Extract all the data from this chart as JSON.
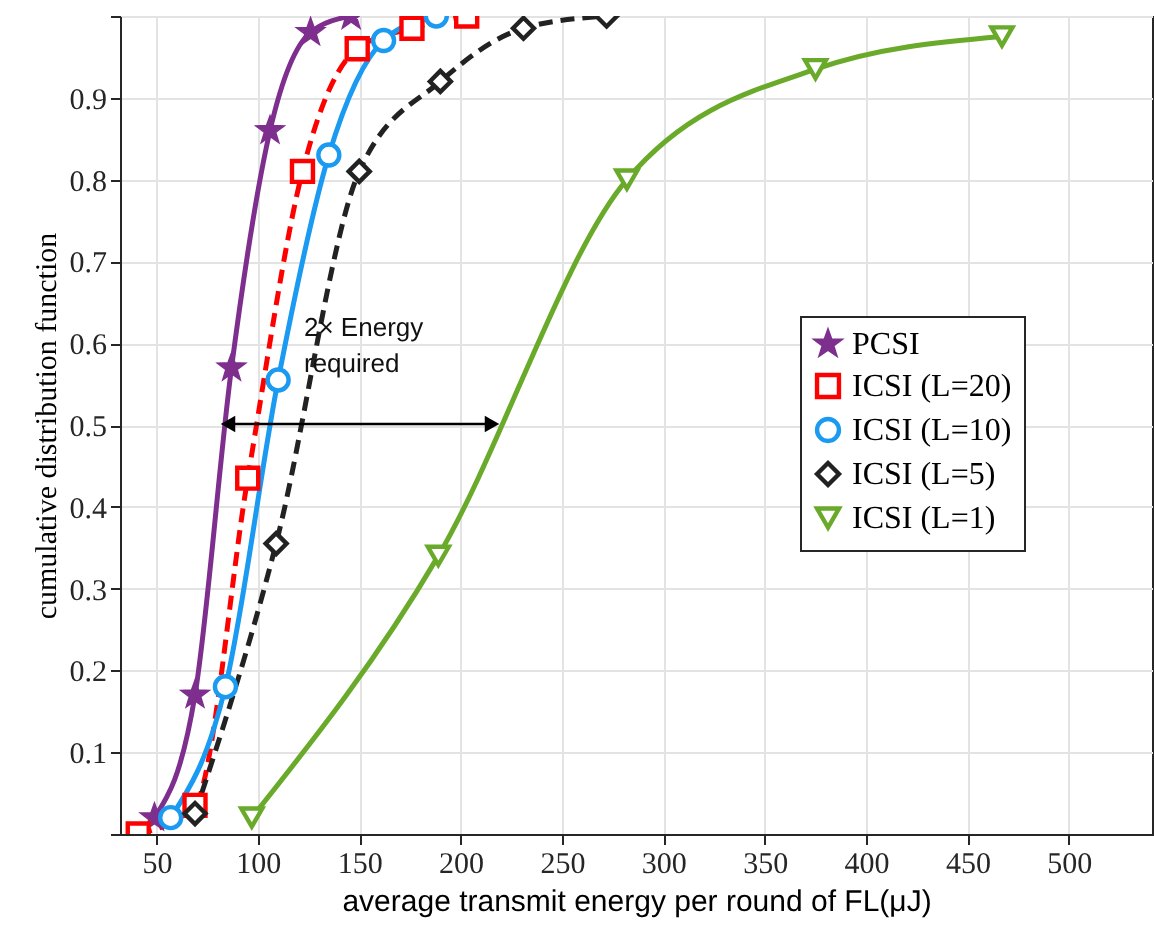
{
  "chart_data": {
    "type": "line",
    "xlabel": "average transmit energy per round of FL(μJ)",
    "ylabel": "cumulative distribution function",
    "xlim": [
      32,
      541
    ],
    "ylim": [
      0,
      1
    ],
    "xticks": [
      50,
      100,
      150,
      200,
      250,
      300,
      350,
      400,
      450,
      500
    ],
    "yticks": [
      {
        "value": 0,
        "label": null
      },
      0.1,
      0.2,
      0.3,
      0.4,
      0.5,
      0.6,
      0.7,
      0.8,
      0.9,
      {
        "value": 1,
        "label": null
      }
    ],
    "grid": true,
    "legend": "right",
    "annotations": [
      "2× Energy required"
    ],
    "series": [
      {
        "name": "PCSI",
        "color": "#7e2f8e",
        "marker": "star",
        "line_style": "solid",
        "x": [
          49,
          69,
          87,
          106,
          126,
          146
        ],
        "values": [
          0.02,
          0.17,
          0.57,
          0.86,
          0.98,
          1.0
        ]
      },
      {
        "name": "ICSI (L=20)",
        "color": "#ff0000",
        "marker": "square",
        "line_style": "dashed",
        "x": [
          41,
          69,
          95,
          122,
          149,
          176,
          203
        ],
        "values": [
          0,
          0.035,
          0.435,
          0.81,
          0.96,
          0.985,
          1.0
        ]
      },
      {
        "name": "ICSI (L=10)",
        "color": "#1a9af0",
        "marker": "circle",
        "line_style": "solid",
        "x": [
          57,
          84,
          110,
          135,
          162,
          188
        ],
        "values": [
          0.02,
          0.18,
          0.555,
          0.83,
          0.97,
          1.0
        ]
      },
      {
        "name": "ICSI (L=5)",
        "color": "#222222",
        "marker": "diamond",
        "line_style": "dashed",
        "x": [
          69,
          109,
          150,
          190,
          231,
          272
        ],
        "values": [
          0.025,
          0.355,
          0.81,
          0.92,
          0.985,
          1.0
        ]
      },
      {
        "name": "ICSI (L=1)",
        "color": "#6aaa2a",
        "marker": "triangle",
        "line_style": "solid",
        "x": [
          97,
          189,
          282,
          375,
          467
        ],
        "values": [
          0.02,
          0.34,
          0.8,
          0.935,
          0.975
        ]
      }
    ]
  }
}
